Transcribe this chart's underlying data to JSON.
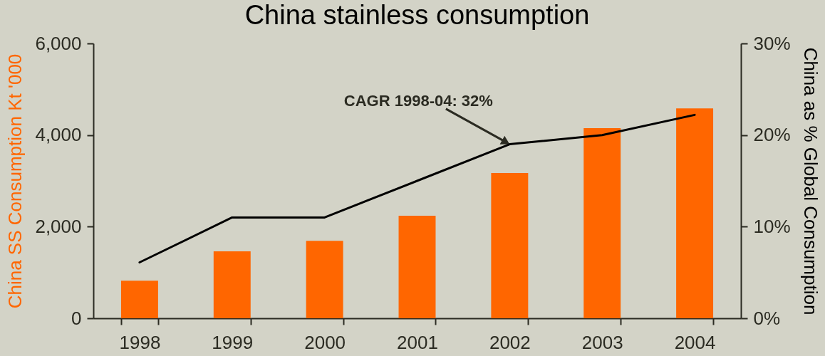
{
  "chart_data": {
    "type": "bar",
    "title": "China stainless consumption",
    "ylabel": "China SS Consumption Kt '000",
    "y2label": "China as % Global Consumption",
    "categories": [
      "1998",
      "1999",
      "2000",
      "2001",
      "2002",
      "2003",
      "2004"
    ],
    "series": [
      {
        "color": "#ff6600",
        "values": [
          820,
          1460,
          1690,
          2240,
          3170,
          4150,
          4580
        ]
      },
      {
        "type": "line",
        "axis": "y2",
        "color": "#000000",
        "values": [
          6.1,
          11,
          11,
          15,
          19,
          20,
          22.2
        ]
      }
    ],
    "ylim": [
      0,
      6000
    ],
    "yticks": [
      {
        "value": 0,
        "label": "0"
      },
      {
        "value": 2000,
        "label": "2,000"
      },
      {
        "value": 4000,
        "label": "4,000"
      },
      {
        "value": 6000,
        "label": "6,000"
      }
    ],
    "y2lim": [
      0,
      30
    ],
    "y2ticks": [
      {
        "value": 0,
        "label": "0%"
      },
      {
        "value": 10,
        "label": "10%"
      },
      {
        "value": 20,
        "label": "20%"
      },
      {
        "value": 30,
        "label": "30%"
      }
    ],
    "annotations": [
      {
        "text": "CAGR 1998-04: 32%",
        "x": "2002",
        "y": 3800
      }
    ],
    "grid": false
  }
}
